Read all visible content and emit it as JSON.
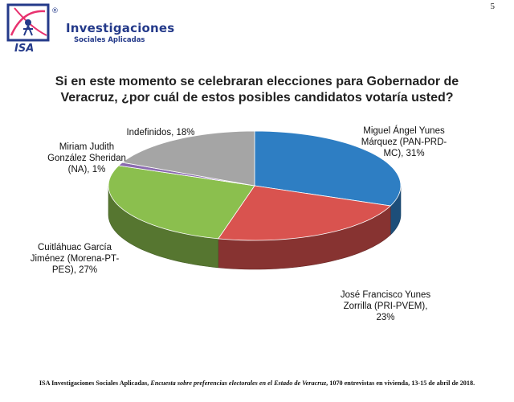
{
  "page": {
    "number": "5"
  },
  "brand": {
    "name": "Investigaciones",
    "subtitle": "Sociales Aplicadas",
    "abbrev": "ISA",
    "registered_mark": "®",
    "primary_color": "#243a8a",
    "accent_color": "#e8326f"
  },
  "chart_data": {
    "type": "pie",
    "style": "3d",
    "title_lines": [
      "Si en este momento se celebraran elecciones para Gobernador de",
      "Veracruz, ¿por cuál de estos posibles candidatos votaría usted?"
    ],
    "slices": [
      {
        "label_lines": [
          "Miguel Ángel Yunes",
          "Márquez (PAN-PRD-",
          "MC), 31%"
        ],
        "value": 31,
        "color": "#2e7ec3"
      },
      {
        "label_lines": [
          "José Francisco Yunes",
          "Zorrilla (PRI-PVEM),",
          "23%"
        ],
        "value": 23,
        "color": "#d9534f"
      },
      {
        "label_lines": [
          "Cuitláhuac García",
          "Jiménez (Morena-PT-",
          "PES), 27%"
        ],
        "value": 27,
        "color": "#8bbf4e"
      },
      {
        "label_lines": [
          "Miriam Judith",
          "González Sheridan",
          "(NA), 1%"
        ],
        "value": 1,
        "color": "#8b6bb0"
      },
      {
        "label_lines": [
          "Indefinidos, 18%"
        ],
        "value": 18,
        "color": "#a5a5a5"
      }
    ]
  },
  "footer": {
    "part1": "ISA Investigaciones Sociales Aplicadas, ",
    "part2": "Encuesta sobre preferencias electorales en el Estado de Veracruz",
    "part3": ", 1070 entrevistas en vivienda, 13-15 de abril de 2018."
  }
}
